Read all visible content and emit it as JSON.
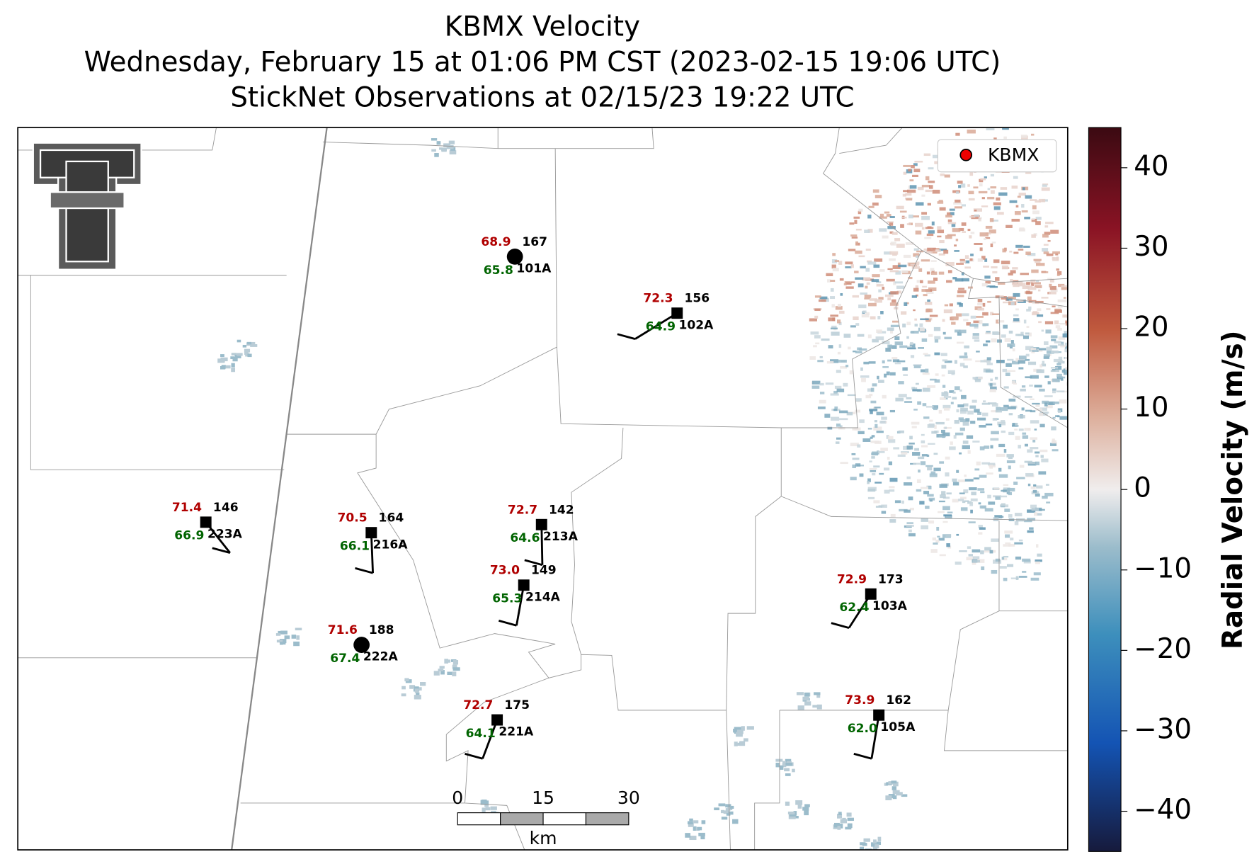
{
  "title_lines": [
    "KBMX Velocity",
    "Wednesday, February 15 at 01:06 PM CST (2023-02-15 19:06 UTC)",
    "StickNet Observations at 02/15/23 19:22 UTC"
  ],
  "legend": {
    "label": "KBMX"
  },
  "colorbar": {
    "label": "Radial Velocity (m/s)",
    "lim": [
      -45,
      45
    ],
    "ticks": [
      {
        "value": -40,
        "label": "−40"
      },
      {
        "value": -30,
        "label": "−30"
      },
      {
        "value": -20,
        "label": "−20"
      },
      {
        "value": -10,
        "label": "−10"
      },
      0,
      10,
      20,
      30,
      40
    ]
  },
  "scale_bar": {
    "ticks": [
      0,
      15,
      30
    ],
    "unit": "km"
  },
  "stations": [
    {
      "temperature": "68.9",
      "dewpoint": "65.8",
      "number": "167",
      "id": "101A"
    },
    {
      "temperature": "72.3",
      "dewpoint": "64.9",
      "number": "156",
      "id": "102A"
    },
    {
      "temperature": "71.4",
      "dewpoint": "66.9",
      "number": "146",
      "id": "223A"
    },
    {
      "temperature": "70.5",
      "dewpoint": "66.1",
      "number": "164",
      "id": "216A"
    },
    {
      "temperature": "72.7",
      "dewpoint": "64.6",
      "number": "142",
      "id": "213A"
    },
    {
      "temperature": "73.0",
      "dewpoint": "65.3",
      "number": "149",
      "id": "214A"
    },
    {
      "temperature": "71.6",
      "dewpoint": "67.4",
      "number": "188",
      "id": "222A"
    },
    {
      "temperature": "72.7",
      "dewpoint": "64.1",
      "number": "175",
      "id": "221A"
    },
    {
      "temperature": "72.9",
      "dewpoint": "62.4",
      "number": "173",
      "id": "103A"
    },
    {
      "temperature": "73.9",
      "dewpoint": "62.0",
      "number": "162",
      "id": "105A"
    }
  ]
}
